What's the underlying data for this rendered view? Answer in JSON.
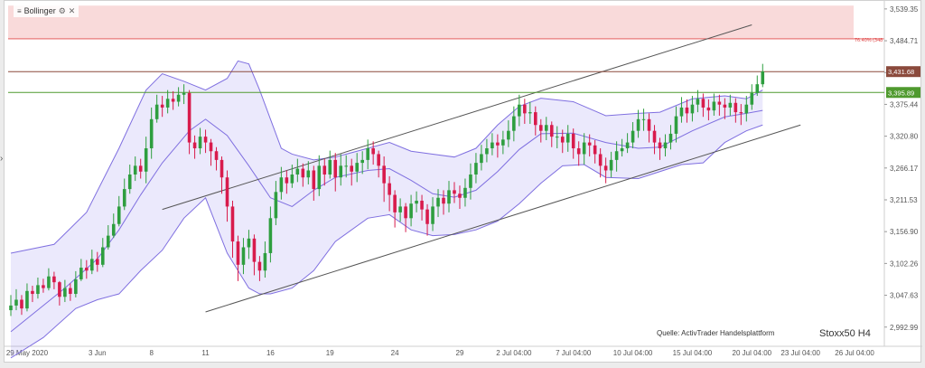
{
  "indicator": {
    "name": "Bollinger"
  },
  "source_note": "Quelle: ActivTrader Handelsplattform",
  "instrument": "Stoxx50 H4",
  "colors": {
    "up": "#2e9e3f",
    "down": "#d81b4c",
    "band": "#7f6fe0",
    "band_fill": "rgba(130,120,235,0.16)",
    "channel": "#555555",
    "resistance": "#8b4a3c",
    "support": "#4f9a2e",
    "fib": "#e04848",
    "zone": "#f9dada"
  },
  "chart_data": {
    "type": "candlestick",
    "ylim": [
      2960,
      3550
    ],
    "y_ticks": [
      "3,539.35",
      "3,484.71",
      "3,430.07",
      "3,375.44",
      "3,320.80",
      "3,266.17",
      "3,211.53",
      "3,156.90",
      "3,102.26",
      "3,047.63",
      "2,992.99"
    ],
    "y_tick_values": [
      3539.35,
      3484.71,
      3430.07,
      3375.44,
      3320.8,
      3266.17,
      3211.53,
      3156.9,
      3102.26,
      3047.63,
      2992.99
    ],
    "x_ticks": [
      "29 May 2020",
      "3 Jun",
      "8",
      "11",
      "16",
      "19",
      "24",
      "29",
      "2 Jul 04:00",
      "7 Jul 04:00",
      "10 Jul 04:00",
      "15 Jul 04:00",
      "20 Jul 04:00",
      "23 Jul 04:00",
      "26 Jul 04:00"
    ],
    "x_tick_bars": [
      3,
      16,
      26,
      36,
      48,
      59,
      71,
      83,
      93,
      104,
      115,
      126,
      137,
      146,
      156
    ],
    "total_slots": 162,
    "last_bar": 139,
    "closes": [
      3030,
      3040,
      3025,
      3055,
      3050,
      3065,
      3060,
      3080,
      3070,
      3045,
      3060,
      3050,
      3075,
      3095,
      3090,
      3110,
      3100,
      3130,
      3150,
      3170,
      3200,
      3230,
      3255,
      3270,
      3260,
      3300,
      3350,
      3375,
      3370,
      3385,
      3380,
      3392,
      3395,
      3310,
      3300,
      3320,
      3310,
      3295,
      3280,
      3250,
      3200,
      3140,
      3100,
      3130,
      3145,
      3105,
      3090,
      3120,
      3180,
      3225,
      3250,
      3240,
      3255,
      3265,
      3250,
      3262,
      3230,
      3270,
      3255,
      3280,
      3250,
      3270,
      3270,
      3260,
      3275,
      3280,
      3300,
      3290,
      3270,
      3240,
      3220,
      3190,
      3200,
      3180,
      3205,
      3210,
      3195,
      3170,
      3200,
      3215,
      3205,
      3228,
      3222,
      3215,
      3232,
      3255,
      3275,
      3290,
      3300,
      3310,
      3305,
      3315,
      3330,
      3355,
      3375,
      3360,
      3362,
      3340,
      3330,
      3340,
      3320,
      3320,
      3310,
      3325,
      3300,
      3290,
      3310,
      3305,
      3290,
      3270,
      3262,
      3280,
      3295,
      3300,
      3310,
      3330,
      3350,
      3350,
      3330,
      3310,
      3300,
      3310,
      3325,
      3355,
      3370,
      3360,
      3375,
      3385,
      3370,
      3365,
      3380,
      3375,
      3370,
      3378,
      3362,
      3360,
      3375,
      3395,
      3410,
      3432
    ],
    "highs": [
      3048,
      3058,
      3048,
      3068,
      3064,
      3078,
      3076,
      3094,
      3088,
      3072,
      3074,
      3068,
      3089,
      3110,
      3108,
      3126,
      3122,
      3146,
      3168,
      3188,
      3218,
      3248,
      3272,
      3286,
      3282,
      3320,
      3370,
      3392,
      3390,
      3400,
      3398,
      3405,
      3410,
      3400,
      3322,
      3335,
      3332,
      3316,
      3302,
      3286,
      3262,
      3210,
      3150,
      3146,
      3160,
      3152,
      3115,
      3140,
      3200,
      3244,
      3268,
      3262,
      3272,
      3282,
      3274,
      3278,
      3270,
      3288,
      3282,
      3296,
      3292,
      3290,
      3288,
      3282,
      3292,
      3295,
      3315,
      3312,
      3296,
      3286,
      3252,
      3228,
      3214,
      3206,
      3220,
      3226,
      3220,
      3204,
      3216,
      3230,
      3228,
      3244,
      3242,
      3236,
      3248,
      3274,
      3292,
      3306,
      3316,
      3326,
      3324,
      3330,
      3348,
      3372,
      3392,
      3385,
      3380,
      3372,
      3350,
      3354,
      3346,
      3338,
      3332,
      3340,
      3334,
      3312,
      3326,
      3324,
      3314,
      3300,
      3284,
      3294,
      3312,
      3316,
      3326,
      3345,
      3366,
      3368,
      3360,
      3340,
      3318,
      3324,
      3340,
      3372,
      3388,
      3384,
      3390,
      3400,
      3394,
      3384,
      3394,
      3392,
      3386,
      3392,
      3386,
      3376,
      3390,
      3410,
      3425,
      3445
    ],
    "lows": [
      3012,
      3022,
      3014,
      3020,
      3036,
      3042,
      3052,
      3056,
      3058,
      3030,
      3036,
      3038,
      3044,
      3072,
      3076,
      3084,
      3088,
      3096,
      3126,
      3146,
      3166,
      3194,
      3222,
      3244,
      3248,
      3240,
      3282,
      3344,
      3354,
      3360,
      3366,
      3372,
      3376,
      3290,
      3282,
      3290,
      3292,
      3270,
      3262,
      3222,
      3174,
      3112,
      3072,
      3084,
      3110,
      3082,
      3072,
      3078,
      3104,
      3168,
      3212,
      3222,
      3232,
      3242,
      3234,
      3238,
      3210,
      3218,
      3236,
      3248,
      3226,
      3236,
      3250,
      3236,
      3242,
      3256,
      3264,
      3272,
      3250,
      3208,
      3192,
      3164,
      3174,
      3156,
      3166,
      3190,
      3176,
      3150,
      3158,
      3182,
      3186,
      3190,
      3206,
      3196,
      3200,
      3212,
      3240,
      3262,
      3276,
      3288,
      3284,
      3290,
      3302,
      3312,
      3338,
      3342,
      3342,
      3322,
      3310,
      3314,
      3302,
      3300,
      3292,
      3294,
      3282,
      3270,
      3272,
      3286,
      3274,
      3250,
      3240,
      3250,
      3260,
      3286,
      3292,
      3300,
      3318,
      3330,
      3310,
      3290,
      3280,
      3286,
      3298,
      3310,
      3344,
      3344,
      3346,
      3362,
      3354,
      3348,
      3356,
      3356,
      3350,
      3356,
      3344,
      3340,
      3346,
      3366,
      3390,
      3405
    ],
    "bands": {
      "upper": [
        [
          0,
          3120
        ],
        [
          8,
          3135
        ],
        [
          14,
          3190
        ],
        [
          20,
          3300
        ],
        [
          25,
          3400
        ],
        [
          28,
          3428
        ],
        [
          32,
          3415
        ],
        [
          36,
          3400
        ],
        [
          40,
          3420
        ],
        [
          42,
          3450
        ],
        [
          44,
          3445
        ],
        [
          46,
          3400
        ],
        [
          48,
          3350
        ],
        [
          50,
          3300
        ],
        [
          52,
          3290
        ],
        [
          56,
          3280
        ],
        [
          60,
          3285
        ],
        [
          66,
          3300
        ],
        [
          70,
          3310
        ],
        [
          74,
          3295
        ],
        [
          78,
          3290
        ],
        [
          82,
          3285
        ],
        [
          86,
          3300
        ],
        [
          90,
          3340
        ],
        [
          94,
          3372
        ],
        [
          98,
          3386
        ],
        [
          104,
          3380
        ],
        [
          110,
          3356
        ],
        [
          116,
          3360
        ],
        [
          120,
          3362
        ],
        [
          126,
          3385
        ],
        [
          132,
          3390
        ],
        [
          136,
          3385
        ],
        [
          139,
          3400
        ]
      ],
      "middle": [
        [
          0,
          2985
        ],
        [
          10,
          3060
        ],
        [
          16,
          3110
        ],
        [
          20,
          3160
        ],
        [
          24,
          3220
        ],
        [
          28,
          3275
        ],
        [
          33,
          3330
        ],
        [
          36,
          3350
        ],
        [
          40,
          3322
        ],
        [
          44,
          3270
        ],
        [
          48,
          3215
        ],
        [
          52,
          3200
        ],
        [
          56,
          3228
        ],
        [
          60,
          3250
        ],
        [
          66,
          3262
        ],
        [
          70,
          3265
        ],
        [
          74,
          3245
        ],
        [
          78,
          3222
        ],
        [
          82,
          3216
        ],
        [
          86,
          3228
        ],
        [
          90,
          3260
        ],
        [
          94,
          3298
        ],
        [
          98,
          3325
        ],
        [
          104,
          3326
        ],
        [
          110,
          3310
        ],
        [
          116,
          3300
        ],
        [
          120,
          3302
        ],
        [
          126,
          3330
        ],
        [
          132,
          3354
        ],
        [
          136,
          3360
        ],
        [
          139,
          3365
        ]
      ],
      "lower": [
        [
          0,
          2940
        ],
        [
          6,
          2975
        ],
        [
          12,
          3025
        ],
        [
          16,
          3040
        ],
        [
          20,
          3050
        ],
        [
          24,
          3090
        ],
        [
          28,
          3125
        ],
        [
          32,
          3180
        ],
        [
          36,
          3215
        ],
        [
          40,
          3120
        ],
        [
          44,
          3060
        ],
        [
          46,
          3050
        ],
        [
          48,
          3050
        ],
        [
          52,
          3060
        ],
        [
          56,
          3090
        ],
        [
          60,
          3140
        ],
        [
          66,
          3180
        ],
        [
          70,
          3186
        ],
        [
          74,
          3160
        ],
        [
          78,
          3150
        ],
        [
          82,
          3152
        ],
        [
          86,
          3160
        ],
        [
          90,
          3175
        ],
        [
          94,
          3205
        ],
        [
          98,
          3240
        ],
        [
          102,
          3270
        ],
        [
          106,
          3272
        ],
        [
          110,
          3250
        ],
        [
          116,
          3248
        ],
        [
          120,
          3260
        ],
        [
          124,
          3272
        ],
        [
          128,
          3275
        ],
        [
          132,
          3310
        ],
        [
          136,
          3330
        ],
        [
          139,
          3340
        ]
      ]
    },
    "channel_lines": [
      {
        "from": [
          28,
          3195
        ],
        "to": [
          137,
          3512
        ]
      },
      {
        "from": [
          36,
          3019
        ],
        "to": [
          146,
          3340
        ]
      }
    ],
    "horizontal_levels": [
      {
        "value": 3431.68,
        "label": "3,431.68",
        "role": "resistance"
      },
      {
        "value": 3395.89,
        "label": "3,395.89",
        "role": "support"
      }
    ],
    "fib_level": {
      "value": 3488,
      "label": "76.40% (348"
    },
    "zone": {
      "from": 3488,
      "to": 3545
    }
  }
}
